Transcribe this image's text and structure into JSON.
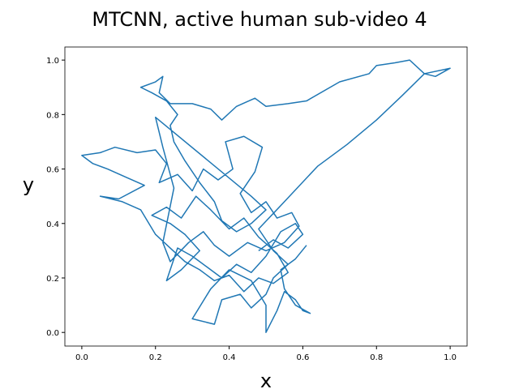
{
  "chart_data": {
    "type": "line",
    "title": "MTCNN, active human sub-video 4",
    "x_label": "x",
    "y_label": "y",
    "color": "#1f77b4",
    "xlim": [
      -0.046,
      1.046
    ],
    "ylim": [
      -0.05,
      1.048
    ],
    "xticks": [
      {
        "value": 0,
        "label": "0.0"
      },
      {
        "value": 0.2,
        "label": "0.2"
      },
      {
        "value": 0.4,
        "label": "0.4"
      },
      {
        "value": 0.6,
        "label": "0.6"
      },
      {
        "value": 0.8,
        "label": "0.8"
      },
      {
        "value": 1,
        "label": "1.0"
      }
    ],
    "yticks": [
      {
        "value": 0,
        "label": "0.0"
      },
      {
        "value": 0.2,
        "label": "0.2"
      },
      {
        "value": 0.4,
        "label": "0.4"
      },
      {
        "value": 0.6,
        "label": "0.6"
      },
      {
        "value": 0.8,
        "label": "0.8"
      },
      {
        "value": 1,
        "label": "1.0"
      }
    ],
    "x": [
      0.48,
      0.52,
      0.56,
      0.6,
      0.58,
      0.54,
      0.5,
      0.46,
      0.42,
      0.38,
      0.34,
      0.3,
      0.26,
      0.23,
      0.27,
      0.32,
      0.28,
      0.24,
      0.19,
      0.23,
      0.27,
      0.31,
      0.35,
      0.4,
      0.44,
      0.48,
      0.53,
      0.56,
      0.52,
      0.48,
      0.44,
      0.4,
      0.36,
      0.32,
      0.28,
      0.24,
      0.2,
      0.16,
      0.11,
      0.05,
      0.1,
      0.17,
      0.12,
      0.07,
      0.03,
      0.0,
      0.05,
      0.09,
      0.15,
      0.2,
      0.23,
      0.21,
      0.26,
      0.3,
      0.33,
      0.37,
      0.41,
      0.39,
      0.44,
      0.49,
      0.47,
      0.43,
      0.46,
      0.5,
      0.53,
      0.57,
      0.59,
      0.55,
      0.5,
      0.45,
      0.4,
      0.36,
      0.33,
      0.29,
      0.24,
      0.22,
      0.25,
      0.22,
      0.2,
      0.46,
      0.5,
      0.46,
      0.42,
      0.38,
      0.36,
      0.32,
      0.28,
      0.25,
      0.24,
      0.26,
      0.23,
      0.19,
      0.16,
      0.2,
      0.22,
      0.21,
      0.24,
      0.3,
      0.35,
      0.38,
      0.42,
      0.47,
      0.5,
      0.56,
      0.61,
      0.7,
      0.78,
      0.8,
      0.85,
      0.89,
      0.93,
      0.96,
      1.0,
      0.93,
      0.87,
      0.8,
      0.72,
      0.64,
      0.55,
      0.48,
      0.52,
      0.56,
      0.52,
      0.5,
      0.46,
      0.43,
      0.38,
      0.36,
      0.3,
      0.35,
      0.4,
      0.46,
      0.5,
      0.5,
      0.53,
      0.55,
      0.58,
      0.6,
      0.62,
      0.58,
      0.55,
      0.54,
      0.58,
      0.61
    ],
    "values": [
      0.3,
      0.34,
      0.31,
      0.36,
      0.4,
      0.37,
      0.28,
      0.22,
      0.25,
      0.2,
      0.24,
      0.28,
      0.31,
      0.19,
      0.23,
      0.3,
      0.36,
      0.4,
      0.43,
      0.46,
      0.42,
      0.5,
      0.45,
      0.38,
      0.42,
      0.35,
      0.29,
      0.22,
      0.18,
      0.2,
      0.15,
      0.21,
      0.19,
      0.23,
      0.26,
      0.31,
      0.36,
      0.45,
      0.48,
      0.5,
      0.49,
      0.54,
      0.57,
      0.6,
      0.62,
      0.65,
      0.66,
      0.68,
      0.66,
      0.67,
      0.62,
      0.55,
      0.58,
      0.52,
      0.6,
      0.56,
      0.6,
      0.7,
      0.72,
      0.68,
      0.59,
      0.51,
      0.44,
      0.48,
      0.42,
      0.44,
      0.39,
      0.33,
      0.3,
      0.33,
      0.28,
      0.32,
      0.37,
      0.33,
      0.26,
      0.33,
      0.53,
      0.68,
      0.79,
      0.5,
      0.45,
      0.4,
      0.37,
      0.41,
      0.48,
      0.55,
      0.63,
      0.7,
      0.76,
      0.8,
      0.85,
      0.88,
      0.9,
      0.92,
      0.94,
      0.88,
      0.84,
      0.84,
      0.82,
      0.78,
      0.83,
      0.86,
      0.83,
      0.84,
      0.85,
      0.92,
      0.95,
      0.98,
      0.99,
      1.0,
      0.95,
      0.94,
      0.97,
      0.95,
      0.87,
      0.78,
      0.69,
      0.61,
      0.48,
      0.38,
      0.3,
      0.25,
      0.2,
      0.14,
      0.09,
      0.14,
      0.12,
      0.03,
      0.05,
      0.16,
      0.23,
      0.19,
      0.1,
      0.0,
      0.08,
      0.15,
      0.12,
      0.08,
      0.07,
      0.1,
      0.16,
      0.23,
      0.27,
      0.32
    ]
  }
}
